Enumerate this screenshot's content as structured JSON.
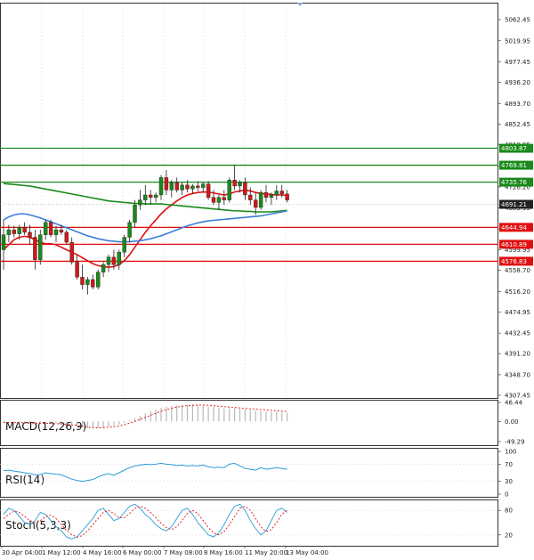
{
  "chart_data": [
    {
      "type": "candlestick",
      "price_axis": {
        "ticks": [
          "5062.45",
          "5019.95",
          "4977.45",
          "4936.20",
          "4893.70",
          "4852.45",
          "4810.95",
          "4768.70",
          "4726.20",
          "4683.95",
          "4641.70",
          "4599.95",
          "4558.70",
          "4516.20",
          "4474.95",
          "4432.45",
          "4391.20",
          "4348.70",
          "4307.45"
        ],
        "range": [
          4307.45,
          5062.45
        ]
      },
      "level_lines": [
        {
          "label": "4803.87",
          "value": 4803.87,
          "color": "#1a8a1a"
        },
        {
          "label": "4769.81",
          "value": 4769.81,
          "color": "#1a8a1a"
        },
        {
          "label": "4735.76",
          "value": 4735.76,
          "color": "#1a8a1a"
        },
        {
          "label": "4644.94",
          "value": 4644.94,
          "color": "#e01010"
        },
        {
          "label": "4610.89",
          "value": 4610.89,
          "color": "#e01010"
        },
        {
          "label": "4576.83",
          "value": 4576.83,
          "color": "#e01010"
        }
      ],
      "current_price": {
        "label": "4691.21",
        "value": 4691.21,
        "color": "#222222"
      },
      "candles": [
        [
          4600,
          4660,
          4560,
          4630
        ],
        [
          4630,
          4650,
          4615,
          4640
        ],
        [
          4640,
          4648,
          4625,
          4632
        ],
        [
          4632,
          4650,
          4620,
          4645
        ],
        [
          4645,
          4655,
          4630,
          4635
        ],
        [
          4635,
          4650,
          4610,
          4625
        ],
        [
          4625,
          4640,
          4560,
          4580
        ],
        [
          4580,
          4640,
          4570,
          4630
        ],
        [
          4630,
          4660,
          4620,
          4655
        ],
        [
          4655,
          4660,
          4625,
          4630
        ],
        [
          4630,
          4648,
          4615,
          4640
        ],
        [
          4640,
          4650,
          4630,
          4635
        ],
        [
          4635,
          4640,
          4610,
          4615
        ],
        [
          4615,
          4625,
          4570,
          4575
        ],
        [
          4575,
          4590,
          4540,
          4545
        ],
        [
          4545,
          4570,
          4520,
          4530
        ],
        [
          4530,
          4545,
          4510,
          4540
        ],
        [
          4540,
          4550,
          4520,
          4525
        ],
        [
          4525,
          4560,
          4520,
          4555
        ],
        [
          4555,
          4575,
          4545,
          4570
        ],
        [
          4570,
          4590,
          4555,
          4585
        ],
        [
          4585,
          4600,
          4560,
          4570
        ],
        [
          4570,
          4600,
          4560,
          4595
        ],
        [
          4595,
          4630,
          4585,
          4625
        ],
        [
          4625,
          4660,
          4615,
          4655
        ],
        [
          4655,
          4700,
          4645,
          4690
        ],
        [
          4690,
          4720,
          4680,
          4700
        ],
        [
          4700,
          4730,
          4690,
          4710
        ],
        [
          4710,
          4720,
          4690,
          4705
        ],
        [
          4705,
          4715,
          4695,
          4710
        ],
        [
          4710,
          4750,
          4700,
          4745
        ],
        [
          4745,
          4760,
          4710,
          4720
        ],
        [
          4720,
          4740,
          4705,
          4735
        ],
        [
          4735,
          4745,
          4715,
          4720
        ],
        [
          4720,
          4735,
          4710,
          4730
        ],
        [
          4730,
          4740,
          4715,
          4722
        ],
        [
          4722,
          4732,
          4712,
          4728
        ],
        [
          4728,
          4738,
          4718,
          4725
        ],
        [
          4725,
          4735,
          4715,
          4732
        ],
        [
          4732,
          4738,
          4700,
          4705
        ],
        [
          4705,
          4720,
          4690,
          4695
        ],
        [
          4695,
          4710,
          4680,
          4705
        ],
        [
          4705,
          4720,
          4690,
          4700
        ],
        [
          4700,
          4745,
          4695,
          4740
        ],
        [
          4740,
          4770,
          4720,
          4728
        ],
        [
          4728,
          4740,
          4715,
          4735
        ],
        [
          4735,
          4745,
          4700,
          4710
        ],
        [
          4710,
          4725,
          4690,
          4700
        ],
        [
          4700,
          4715,
          4670,
          4685
        ],
        [
          4685,
          4720,
          4680,
          4715
        ],
        [
          4715,
          4730,
          4695,
          4705
        ],
        [
          4705,
          4715,
          4690,
          4710
        ],
        [
          4710,
          4730,
          4700,
          4718
        ],
        [
          4718,
          4730,
          4705,
          4712
        ],
        [
          4712,
          4720,
          4695,
          4700
        ]
      ],
      "moving_averages": [
        {
          "color": "#e01010",
          "values": [
            4600,
            4610,
            4620,
            4625,
            4627,
            4625,
            4620,
            4615,
            4612,
            4612,
            4610,
            4605,
            4600,
            4595,
            4590,
            4584,
            4578,
            4572,
            4568,
            4566,
            4565,
            4566,
            4570,
            4578,
            4590,
            4605,
            4620,
            4635,
            4648,
            4660,
            4672,
            4682,
            4690,
            4698,
            4705,
            4710,
            4713,
            4715,
            4716,
            4716,
            4714,
            4712,
            4710,
            4712,
            4716,
            4718,
            4720,
            4718,
            4715,
            4713,
            4712,
            4711,
            4710,
            4710,
            4709
          ]
        },
        {
          "color": "#1a8a1a",
          "values": [
            4733,
            4732,
            4731,
            4730,
            4729,
            4728,
            4726,
            4724,
            4722,
            4720,
            4718,
            4716,
            4714,
            4712,
            4710,
            4708,
            4706,
            4704,
            4702,
            4700,
            4698,
            4697,
            4696,
            4695,
            4694,
            4693,
            4693,
            4692,
            4692,
            4692,
            4692,
            4691,
            4690,
            4689,
            4688,
            4687,
            4686,
            4685,
            4684,
            4683,
            4682,
            4681,
            4680,
            4679,
            4678,
            4678,
            4677,
            4677,
            4676,
            4676,
            4676,
            4676,
            4677,
            4678,
            4679
          ]
        },
        {
          "color": "#3a7fd9",
          "values": [
            4660,
            4666,
            4670,
            4672,
            4672,
            4670,
            4667,
            4664,
            4660,
            4656,
            4652,
            4648,
            4644,
            4640,
            4636,
            4632,
            4628,
            4625,
            4622,
            4620,
            4618,
            4617,
            4616,
            4616,
            4616,
            4617,
            4618,
            4620,
            4622,
            4625,
            4628,
            4632,
            4636,
            4640,
            4644,
            4648,
            4651,
            4654,
            4656,
            4658,
            4659,
            4660,
            4661,
            4662,
            4663,
            4664,
            4665,
            4666,
            4667,
            4668,
            4670,
            4672,
            4674,
            4676,
            4678
          ]
        }
      ],
      "x_axis_labels": [
        "30 Apr 04:00",
        "1 May 12:00",
        "4 May 16:00",
        "6 May 00:00",
        "7 May 08:00",
        "8 May 16:00",
        "11 May 20:00",
        "13 May 04:00"
      ]
    },
    {
      "type": "histogram",
      "title": "MACD(12,26,9)",
      "y_ticks": [
        "46.44",
        "0.00",
        "-49.29"
      ],
      "range": [
        -49.29,
        46.44
      ],
      "histogram": [
        -4,
        -3,
        -2,
        -2,
        -3,
        -4,
        -5,
        -5,
        -4,
        -4,
        -4,
        -5,
        -7,
        -9,
        -12,
        -14,
        -16,
        -16,
        -15,
        -14,
        -12,
        -11,
        -8,
        -4,
        2,
        8,
        14,
        20,
        25,
        29,
        33,
        36,
        38,
        40,
        41,
        41,
        41,
        40,
        39,
        37,
        35,
        33,
        32,
        32,
        32,
        31,
        30,
        28,
        26,
        25,
        24,
        23,
        23,
        22,
        21
      ],
      "signal": [
        -2,
        -2.5,
        -3,
        -3,
        -3.2,
        -3.5,
        -4,
        -4.5,
        -4.8,
        -5,
        -5.5,
        -6,
        -7,
        -8.5,
        -10,
        -12,
        -14,
        -15,
        -16,
        -15,
        -14,
        -13,
        -11,
        -8,
        -4,
        0,
        5,
        10,
        15,
        20,
        25,
        29,
        32,
        35,
        37,
        38.5,
        39.5,
        40,
        40,
        39.5,
        38.5,
        37,
        36,
        35,
        34,
        33,
        32,
        31,
        30,
        29,
        28,
        27,
        26,
        25,
        24
      ]
    },
    {
      "type": "line",
      "title": "RSI(14)",
      "y_ticks": [
        "100",
        "70",
        "30",
        "0"
      ],
      "range": [
        0,
        100
      ],
      "values": [
        55,
        56,
        54,
        52,
        50,
        48,
        45,
        46,
        50,
        48,
        47,
        45,
        40,
        35,
        32,
        30,
        32,
        34,
        40,
        45,
        48,
        44,
        50,
        56,
        62,
        66,
        68,
        70,
        69,
        70,
        72,
        70,
        69,
        67,
        68,
        66,
        67,
        66,
        68,
        64,
        62,
        63,
        62,
        70,
        72,
        66,
        60,
        58,
        56,
        62,
        58,
        60,
        62,
        60,
        58
      ]
    },
    {
      "type": "line",
      "title": "Stoch(5,3,3)",
      "y_ticks": [
        "80",
        "20"
      ],
      "range": [
        0,
        100
      ],
      "series": [
        {
          "color": "#2a9bd8",
          "values": [
            70,
            85,
            80,
            65,
            50,
            45,
            55,
            75,
            70,
            55,
            40,
            30,
            15,
            10,
            15,
            30,
            45,
            60,
            80,
            85,
            70,
            55,
            60,
            75,
            90,
            95,
            85,
            70,
            60,
            45,
            35,
            30,
            40,
            60,
            80,
            85,
            70,
            50,
            35,
            20,
            15,
            25,
            45,
            70,
            90,
            95,
            80,
            55,
            35,
            20,
            30,
            55,
            80,
            85,
            75
          ]
        },
        {
          "color": "#e01010",
          "values": [
            60,
            70,
            78,
            75,
            65,
            55,
            50,
            55,
            65,
            68,
            60,
            45,
            30,
            20,
            15,
            18,
            30,
            45,
            60,
            75,
            80,
            72,
            62,
            62,
            72,
            85,
            90,
            85,
            75,
            62,
            48,
            38,
            33,
            40,
            55,
            72,
            80,
            72,
            55,
            38,
            25,
            20,
            28,
            45,
            65,
            85,
            90,
            80,
            60,
            40,
            28,
            33,
            50,
            70,
            80
          ]
        }
      ]
    }
  ]
}
